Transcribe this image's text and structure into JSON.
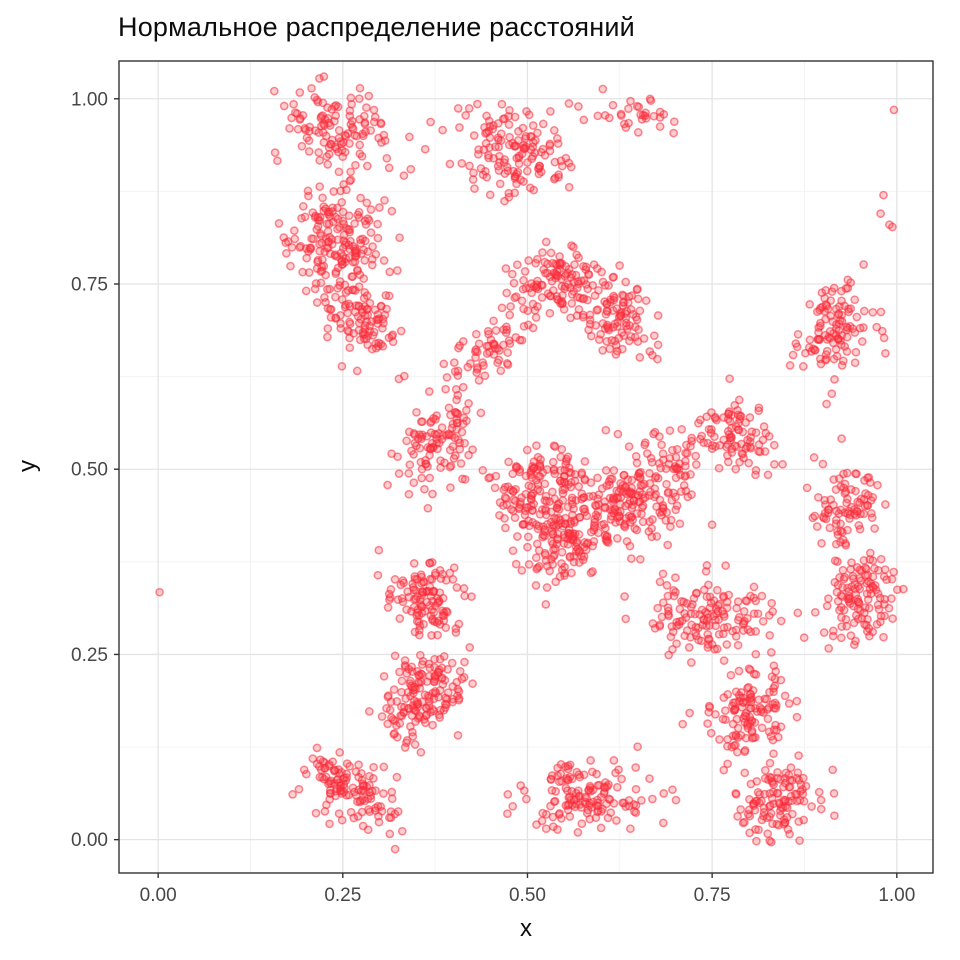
{
  "chart_data": {
    "type": "scatter",
    "title": "Нормальное распределение расстояний",
    "xlabel": "x",
    "ylabel": "y",
    "xlim": [
      -0.053,
      1.049
    ],
    "ylim": [
      -0.045,
      1.051
    ],
    "x_major_ticks": [
      0.0,
      0.25,
      0.5,
      0.75,
      1.0
    ],
    "x_tick_labels": [
      "0.00",
      "0.25",
      "0.50",
      "0.75",
      "1.00"
    ],
    "y_major_ticks": [
      0.0,
      0.25,
      0.5,
      0.75,
      1.0
    ],
    "y_tick_labels": [
      "0.00",
      "0.25",
      "0.50",
      "0.75",
      "1.00"
    ],
    "x_minor_ticks": [
      0.125,
      0.375,
      0.625,
      0.875
    ],
    "y_minor_ticks": [
      0.125,
      0.375,
      0.625,
      0.875
    ],
    "grid": {
      "major_color": "#E4E4E4",
      "minor_color": "#F2F2F2",
      "major_width": 1.3,
      "minor_width": 0.9
    },
    "panel": {
      "background": "#FFFFFF",
      "border_color": "#343434",
      "border_width": 1.4
    },
    "tick_style": {
      "color": "#333333",
      "length": 5,
      "label_color": "#474747",
      "label_size": 19
    },
    "point_style": {
      "radius": 3.6,
      "fill": "#FF3C46",
      "fill_opacity": 0.25,
      "stroke": "#F82A38",
      "stroke_opacity": 0.55,
      "stroke_width": 1.5
    },
    "seed": 20,
    "legend": "none",
    "clusters": [
      {
        "x": 0.245,
        "y": 0.958,
        "sdx": 0.038,
        "sdy": 0.03,
        "n": 120,
        "corr": -0.2
      },
      {
        "x": 0.48,
        "y": 0.93,
        "sdx": 0.035,
        "sdy": 0.03,
        "n": 140,
        "corr": 0
      },
      {
        "x": 0.65,
        "y": 0.978,
        "sdx": 0.03,
        "sdy": 0.012,
        "n": 32,
        "corr": -0.3
      },
      {
        "x": 0.243,
        "y": 0.808,
        "sdx": 0.033,
        "sdy": 0.032,
        "n": 170,
        "corr": 0
      },
      {
        "x": 0.278,
        "y": 0.7,
        "sdx": 0.028,
        "sdy": 0.03,
        "n": 105,
        "corr": -0.3
      },
      {
        "x": 0.443,
        "y": 0.66,
        "sdx": 0.032,
        "sdy": 0.03,
        "n": 70,
        "corr": 0.7
      },
      {
        "x": 0.527,
        "y": 0.748,
        "sdx": 0.028,
        "sdy": 0.026,
        "n": 80,
        "corr": 0.3
      },
      {
        "x": 0.61,
        "y": 0.713,
        "sdx": 0.033,
        "sdy": 0.034,
        "n": 135,
        "corr": -0.5
      },
      {
        "x": 0.92,
        "y": 0.69,
        "sdx": 0.027,
        "sdy": 0.03,
        "n": 110,
        "corr": 0
      },
      {
        "x": 0.376,
        "y": 0.535,
        "sdx": 0.027,
        "sdy": 0.027,
        "n": 105,
        "corr": 0.2
      },
      {
        "x": 0.52,
        "y": 0.468,
        "sdx": 0.034,
        "sdy": 0.033,
        "n": 165,
        "corr": 0
      },
      {
        "x": 0.553,
        "y": 0.4,
        "sdx": 0.03,
        "sdy": 0.027,
        "n": 115,
        "corr": 0.3
      },
      {
        "x": 0.634,
        "y": 0.455,
        "sdx": 0.034,
        "sdy": 0.03,
        "n": 165,
        "corr": 0
      },
      {
        "x": 0.7,
        "y": 0.513,
        "sdx": 0.024,
        "sdy": 0.022,
        "n": 55,
        "corr": 0
      },
      {
        "x": 0.788,
        "y": 0.542,
        "sdx": 0.027,
        "sdy": 0.025,
        "n": 85,
        "corr": 0
      },
      {
        "x": 0.93,
        "y": 0.45,
        "sdx": 0.027,
        "sdy": 0.026,
        "n": 85,
        "corr": 0
      },
      {
        "x": 0.953,
        "y": 0.333,
        "sdx": 0.026,
        "sdy": 0.028,
        "n": 120,
        "corr": 0
      },
      {
        "x": 0.36,
        "y": 0.323,
        "sdx": 0.027,
        "sdy": 0.026,
        "n": 115,
        "corr": 0
      },
      {
        "x": 0.352,
        "y": 0.19,
        "sdx": 0.03,
        "sdy": 0.032,
        "n": 155,
        "corr": 0.4
      },
      {
        "x": 0.268,
        "y": 0.065,
        "sdx": 0.034,
        "sdy": 0.028,
        "n": 125,
        "corr": -0.6
      },
      {
        "x": 0.578,
        "y": 0.06,
        "sdx": 0.04,
        "sdy": 0.024,
        "n": 140,
        "corr": 0
      },
      {
        "x": 0.745,
        "y": 0.3,
        "sdx": 0.048,
        "sdy": 0.026,
        "n": 145,
        "corr": 0
      },
      {
        "x": 0.798,
        "y": 0.175,
        "sdx": 0.028,
        "sdy": 0.028,
        "n": 125,
        "corr": 0
      },
      {
        "x": 0.843,
        "y": 0.048,
        "sdx": 0.03,
        "sdy": 0.026,
        "n": 118,
        "corr": 0
      }
    ],
    "singles": [
      [
        0.002,
        0.334
      ],
      [
        0.996,
        0.985
      ],
      [
        0.982,
        0.87
      ],
      [
        0.978,
        0.845
      ],
      [
        0.99,
        0.83
      ],
      [
        0.994,
        0.827
      ],
      [
        0.888,
        0.516
      ],
      [
        0.9,
        0.507
      ],
      [
        0.912,
        0.602
      ],
      [
        0.905,
        0.588
      ],
      [
        0.342,
        0.905
      ],
      [
        0.395,
        0.912
      ]
    ]
  }
}
